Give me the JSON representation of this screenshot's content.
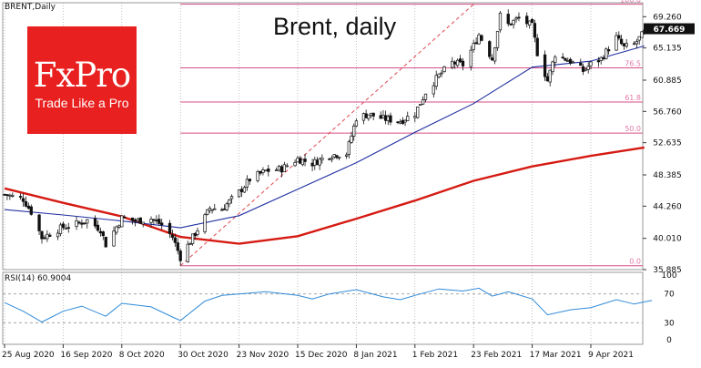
{
  "header": {
    "symbol_label": "BRENT,Daily",
    "title": "Brent, daily"
  },
  "logo": {
    "name": "FxPro",
    "tagline": "Trade Like a Pro",
    "color": "#e8201f"
  },
  "rsi_panel": {
    "label": "RSI(14) 60.9004"
  },
  "colors": {
    "candle": "#111111",
    "ma_fast": "#1f2fa0",
    "ma_slow": "#d51a12",
    "fib": "#d64f86",
    "trend": "#e0474f",
    "rsi": "#2f8ad8",
    "grid": "#9a9a9a",
    "price_tag_bg": "#111111",
    "price_tag_fg": "#ffffff"
  },
  "chart_data": [
    {
      "type": "candlestick",
      "title": "Brent, daily",
      "ylim": [
        35.885,
        71.1
      ],
      "y_ticks": [
        35.885,
        40.01,
        44.26,
        48.385,
        52.635,
        56.76,
        60.885,
        65.135,
        69.26
      ],
      "current_price": 67.669,
      "x_labels": [
        "25 Aug 2020",
        "16 Sep 2020",
        "8 Oct 2020",
        "30 Oct 2020",
        "23 Nov 2020",
        "15 Dec 2020",
        "8 Jan 2021",
        "1 Feb 2021",
        "23 Feb 2021",
        "17 Mar 2021",
        "9 Apr 2021"
      ],
      "fibonacci_levels": [
        {
          "label": "100.0",
          "value": 70.9
        },
        {
          "label": "76.5",
          "value": 62.5
        },
        {
          "label": "61.8",
          "value": 58.0
        },
        {
          "label": "50.0",
          "value": 53.9
        },
        {
          "label": "0.0",
          "value": 36.4
        }
      ],
      "trendline": {
        "from": [
          "30 Oct 2020",
          36.4
        ],
        "to": [
          "23 Feb 2021",
          70.9
        ]
      },
      "close_anchors": [
        [
          "25 Aug 2020",
          45.8
        ],
        [
          "1 Sep 2020",
          45.2
        ],
        [
          "4 Sep 2020",
          43.5
        ],
        [
          "8 Sep 2020",
          40.1
        ],
        [
          "16 Sep 2020",
          41.5
        ],
        [
          "21 Sep 2020",
          41.9
        ],
        [
          "25 Sep 2020",
          42.4
        ],
        [
          "30 Sep 2020",
          41.2
        ],
        [
          "2 Oct 2020",
          39.2
        ],
        [
          "8 Oct 2020",
          42.7
        ],
        [
          "13 Oct 2020",
          42.3
        ],
        [
          "19 Oct 2020",
          42.6
        ],
        [
          "23 Oct 2020",
          41.8
        ],
        [
          "27 Oct 2020",
          40.2
        ],
        [
          "30 Oct 2020",
          37.5
        ],
        [
          "3 Nov 2020",
          39.6
        ],
        [
          "9 Nov 2020",
          42.8
        ],
        [
          "11 Nov 2020",
          44.0
        ],
        [
          "16 Nov 2020",
          43.9
        ],
        [
          "23 Nov 2020",
          46.1
        ],
        [
          "27 Nov 2020",
          47.8
        ],
        [
          "3 Dec 2020",
          48.9
        ],
        [
          "9 Dec 2020",
          49.2
        ],
        [
          "15 Dec 2020",
          50.5
        ],
        [
          "21 Dec 2020",
          49.9
        ],
        [
          "28 Dec 2020",
          51.0
        ],
        [
          "4 Jan 2021",
          51.2
        ],
        [
          "8 Jan 2021",
          55.9
        ],
        [
          "13 Jan 2021",
          56.4
        ],
        [
          "19 Jan 2021",
          55.8
        ],
        [
          "26 Jan 2021",
          55.5
        ],
        [
          "1 Feb 2021",
          56.5
        ],
        [
          "5 Feb 2021",
          59.3
        ],
        [
          "10 Feb 2021",
          61.5
        ],
        [
          "15 Feb 2021",
          63.2
        ],
        [
          "19 Feb 2021",
          62.9
        ],
        [
          "23 Feb 2021",
          65.4
        ],
        [
          "25 Feb 2021",
          66.9
        ],
        [
          "2 Mar 2021",
          63.7
        ],
        [
          "5 Mar 2021",
          69.4
        ],
        [
          "8 Mar 2021",
          68.2
        ],
        [
          "12 Mar 2021",
          69.1
        ],
        [
          "17 Mar 2021",
          68.0
        ],
        [
          "19 Mar 2021",
          64.5
        ],
        [
          "23 Mar 2021",
          60.8
        ],
        [
          "26 Mar 2021",
          64.3
        ],
        [
          "1 Apr 2021",
          63.4
        ],
        [
          "6 Apr 2021",
          62.1
        ],
        [
          "9 Apr 2021",
          63.0
        ],
        [
          "13 Apr 2021",
          63.7
        ],
        [
          "19 Apr 2021",
          66.5
        ],
        [
          "22 Apr 2021",
          65.2
        ],
        [
          "26 Apr 2021",
          65.6
        ],
        [
          "30 Apr 2021",
          67.2
        ],
        [
          "3 May 2021",
          67.669
        ]
      ],
      "ma_fast_anchors": [
        [
          "25 Aug 2020",
          43.8
        ],
        [
          "16 Sep 2020",
          43.1
        ],
        [
          "8 Oct 2020",
          42.3
        ],
        [
          "30 Oct 2020",
          41.4
        ],
        [
          "23 Nov 2020",
          43.0
        ],
        [
          "15 Dec 2020",
          46.5
        ],
        [
          "8 Jan 2021",
          50.0
        ],
        [
          "1 Feb 2021",
          54.0
        ],
        [
          "23 Feb 2021",
          57.8
        ],
        [
          "17 Mar 2021",
          62.6
        ],
        [
          "9 Apr 2021",
          63.4
        ],
        [
          "30 Apr 2021",
          65.4
        ]
      ],
      "ma_slow_anchors": [
        [
          "25 Aug 2020",
          46.6
        ],
        [
          "16 Sep 2020",
          44.7
        ],
        [
          "8 Oct 2020",
          42.9
        ],
        [
          "30 Oct 2020",
          40.2
        ],
        [
          "23 Nov 2020",
          39.3
        ],
        [
          "15 Dec 2020",
          40.3
        ],
        [
          "8 Jan 2021",
          42.6
        ],
        [
          "1 Feb 2021",
          45.0
        ],
        [
          "23 Feb 2021",
          47.6
        ],
        [
          "17 Mar 2021",
          49.5
        ],
        [
          "9 Apr 2021",
          50.9
        ],
        [
          "30 Apr 2021",
          52.0
        ]
      ]
    },
    {
      "type": "line",
      "series_label": "RSI(14) 60.9004",
      "ylim": [
        0,
        100
      ],
      "y_ticks": [
        0,
        30,
        70,
        100
      ],
      "levels": [
        30,
        70
      ],
      "anchors": [
        [
          "25 Aug 2020",
          58
        ],
        [
          "1 Sep 2020",
          46
        ],
        [
          "8 Sep 2020",
          31
        ],
        [
          "16 Sep 2020",
          46
        ],
        [
          "23 Sep 2020",
          53
        ],
        [
          "2 Oct 2020",
          39
        ],
        [
          "8 Oct 2020",
          57
        ],
        [
          "19 Oct 2020",
          52
        ],
        [
          "27 Oct 2020",
          38
        ],
        [
          "30 Oct 2020",
          33
        ],
        [
          "9 Nov 2020",
          60
        ],
        [
          "16 Nov 2020",
          68
        ],
        [
          "23 Nov 2020",
          70
        ],
        [
          "3 Dec 2020",
          73
        ],
        [
          "15 Dec 2020",
          68
        ],
        [
          "21 Dec 2020",
          63
        ],
        [
          "28 Dec 2020",
          70
        ],
        [
          "8 Jan 2021",
          76
        ],
        [
          "19 Jan 2021",
          66
        ],
        [
          "26 Jan 2021",
          62
        ],
        [
          "1 Feb 2021",
          68
        ],
        [
          "10 Feb 2021",
          77
        ],
        [
          "19 Feb 2021",
          74
        ],
        [
          "25 Feb 2021",
          78
        ],
        [
          "2 Mar 2021",
          67
        ],
        [
          "8 Mar 2021",
          73
        ],
        [
          "17 Mar 2021",
          63
        ],
        [
          "23 Mar 2021",
          41
        ],
        [
          "1 Apr 2021",
          48
        ],
        [
          "9 Apr 2021",
          51
        ],
        [
          "19 Apr 2021",
          62
        ],
        [
          "26 Apr 2021",
          56
        ],
        [
          "3 May 2021",
          61
        ]
      ]
    }
  ]
}
